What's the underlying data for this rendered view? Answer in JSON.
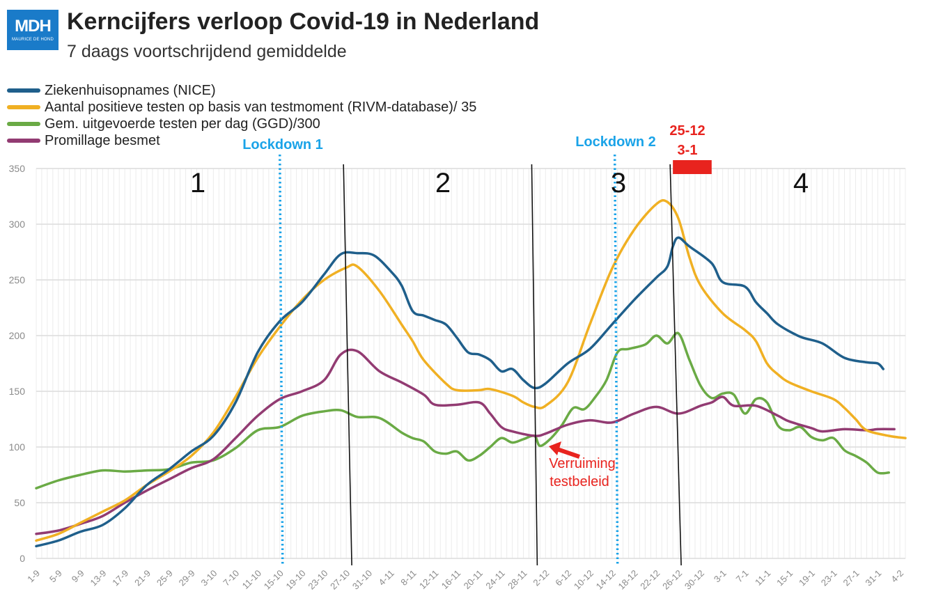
{
  "logo": {
    "text": "MDH",
    "subtext": "MAURICE DE HOND"
  },
  "title": "Kerncijfers verloop Covid-19 in Nederland",
  "subtitle": "7 daags voortschrijdend gemiddelde",
  "colors": {
    "ziekenhuis": "#1f5f8b",
    "positief": "#f0b023",
    "testen": "#6aaa45",
    "promillage": "#923b72",
    "lockdown": "#1aa3e8",
    "annotation": "#e8231e",
    "grid": "#e6e6e6"
  },
  "legend": [
    {
      "label": "Ziekenhuisopnames (NICE)",
      "color": "#1f5f8b"
    },
    {
      "label": "Aantal positieve testen op basis van testmoment (RIVM-database)/ 35",
      "color": "#f0b023"
    },
    {
      "label": "Gem. uitgevoerde testen per dag (GGD)/300",
      "color": "#6aaa45"
    },
    {
      "label": "Promillage besmet",
      "color": "#923b72"
    }
  ],
  "annotations": {
    "lockdown1": "Lockdown 1",
    "lockdown2": "Lockdown 2",
    "christmas_line1": "25-12",
    "christmas_line2": "3-1",
    "arrow_line1": "Verruiming",
    "arrow_line2": "testbeleid",
    "period_labels": [
      "1",
      "2",
      "3",
      "4"
    ]
  },
  "chart_data": {
    "type": "line",
    "x_tick_labels": [
      "1-9",
      "5-9",
      "9-9",
      "13-9",
      "17-9",
      "21-9",
      "25-9",
      "29-9",
      "3-10",
      "7-10",
      "11-10",
      "15-10",
      "19-10",
      "23-10",
      "27-10",
      "31-10",
      "4-11",
      "8-11",
      "12-11",
      "16-11",
      "20-11",
      "24-11",
      "28-11",
      "2-12",
      "6-12",
      "10-12",
      "14-12",
      "18-12",
      "22-12",
      "26-12",
      "30-12",
      "3-1",
      "7-1",
      "11-1",
      "15-1",
      "19-1",
      "23-1",
      "27-1",
      "31-1",
      "4-2"
    ],
    "x_range_days": [
      0,
      157
    ],
    "y_ticks": [
      0,
      50,
      100,
      150,
      200,
      250,
      300,
      350
    ],
    "ylim": [
      0,
      350
    ],
    "grid": true,
    "legend_position": "top-left",
    "markers": {
      "lockdown1_day": 44,
      "lockdown2_day": 104.5,
      "period_dividers": [
        [
          55.5,
          57
        ],
        [
          89.5,
          90.5
        ],
        [
          114.5,
          116.5
        ]
      ],
      "christmas_box_days": [
        115,
        122
      ]
    },
    "series": [
      {
        "name": "Ziekenhuisopnames (NICE)",
        "color": "#1f5f8b",
        "points": [
          [
            0,
            11
          ],
          [
            4,
            16
          ],
          [
            8,
            24
          ],
          [
            12,
            30
          ],
          [
            16,
            45
          ],
          [
            20,
            66
          ],
          [
            24,
            80
          ],
          [
            28,
            96
          ],
          [
            32,
            110
          ],
          [
            36,
            140
          ],
          [
            40,
            185
          ],
          [
            44,
            213
          ],
          [
            48,
            230
          ],
          [
            52,
            255
          ],
          [
            55,
            273
          ],
          [
            58,
            274
          ],
          [
            61,
            272
          ],
          [
            64,
            258
          ],
          [
            66,
            245
          ],
          [
            68,
            222
          ],
          [
            70,
            218
          ],
          [
            72,
            214
          ],
          [
            74,
            210
          ],
          [
            76,
            198
          ],
          [
            78,
            185
          ],
          [
            80,
            183
          ],
          [
            82,
            178
          ],
          [
            84,
            168
          ],
          [
            86,
            170
          ],
          [
            88,
            160
          ],
          [
            90,
            153
          ],
          [
            92,
            157
          ],
          [
            96,
            175
          ],
          [
            100,
            188
          ],
          [
            104,
            210
          ],
          [
            108,
            232
          ],
          [
            112,
            252
          ],
          [
            114,
            262
          ],
          [
            115,
            280
          ],
          [
            116,
            288
          ],
          [
            118,
            280
          ],
          [
            122,
            265
          ],
          [
            124,
            248
          ],
          [
            128,
            244
          ],
          [
            130,
            230
          ],
          [
            132,
            220
          ],
          [
            134,
            210
          ],
          [
            138,
            199
          ],
          [
            142,
            193
          ],
          [
            146,
            180
          ],
          [
            150,
            176
          ],
          [
            152,
            175
          ],
          [
            153,
            170
          ]
        ]
      },
      {
        "name": "Aantal positieve testen op basis van testmoment (RIVM-database)/ 35",
        "color": "#f0b023",
        "points": [
          [
            0,
            16
          ],
          [
            4,
            22
          ],
          [
            8,
            32
          ],
          [
            12,
            42
          ],
          [
            16,
            52
          ],
          [
            20,
            66
          ],
          [
            24,
            78
          ],
          [
            28,
            92
          ],
          [
            32,
            113
          ],
          [
            36,
            145
          ],
          [
            40,
            180
          ],
          [
            44,
            208
          ],
          [
            48,
            232
          ],
          [
            52,
            250
          ],
          [
            56,
            261
          ],
          [
            58,
            262
          ],
          [
            62,
            240
          ],
          [
            66,
            210
          ],
          [
            68,
            195
          ],
          [
            70,
            178
          ],
          [
            74,
            157
          ],
          [
            76,
            151
          ],
          [
            80,
            151
          ],
          [
            82,
            152
          ],
          [
            86,
            146
          ],
          [
            88,
            140
          ],
          [
            90,
            136
          ],
          [
            92,
            137
          ],
          [
            96,
            158
          ],
          [
            100,
            210
          ],
          [
            104,
            260
          ],
          [
            108,
            295
          ],
          [
            112,
            318
          ],
          [
            114,
            320
          ],
          [
            116,
            305
          ],
          [
            118,
            270
          ],
          [
            120,
            245
          ],
          [
            124,
            220
          ],
          [
            128,
            205
          ],
          [
            130,
            195
          ],
          [
            132,
            175
          ],
          [
            134,
            165
          ],
          [
            136,
            158
          ],
          [
            140,
            150
          ],
          [
            144,
            143
          ],
          [
            146,
            135
          ],
          [
            148,
            125
          ],
          [
            150,
            115
          ],
          [
            154,
            110
          ],
          [
            157,
            108
          ]
        ]
      },
      {
        "name": "Gem. uitgevoerde testen per dag (GGD)/300",
        "color": "#6aaa45",
        "points": [
          [
            0,
            63
          ],
          [
            4,
            70
          ],
          [
            8,
            75
          ],
          [
            12,
            79
          ],
          [
            16,
            78
          ],
          [
            20,
            79
          ],
          [
            24,
            80
          ],
          [
            28,
            86
          ],
          [
            32,
            88
          ],
          [
            36,
            99
          ],
          [
            40,
            115
          ],
          [
            44,
            118
          ],
          [
            48,
            128
          ],
          [
            52,
            132
          ],
          [
            55,
            133
          ],
          [
            58,
            127
          ],
          [
            62,
            126
          ],
          [
            66,
            113
          ],
          [
            68,
            108
          ],
          [
            70,
            105
          ],
          [
            72,
            96
          ],
          [
            74,
            94
          ],
          [
            76,
            96
          ],
          [
            78,
            88
          ],
          [
            80,
            92
          ],
          [
            82,
            100
          ],
          [
            84,
            108
          ],
          [
            86,
            104
          ],
          [
            88,
            107
          ],
          [
            90,
            110
          ],
          [
            91,
            101
          ],
          [
            93,
            108
          ],
          [
            95,
            120
          ],
          [
            97,
            135
          ],
          [
            99,
            134
          ],
          [
            101,
            145
          ],
          [
            103,
            160
          ],
          [
            105,
            185
          ],
          [
            107,
            188
          ],
          [
            110,
            192
          ],
          [
            112,
            200
          ],
          [
            114,
            193
          ],
          [
            116,
            202
          ],
          [
            118,
            178
          ],
          [
            120,
            155
          ],
          [
            122,
            144
          ],
          [
            124,
            148
          ],
          [
            126,
            147
          ],
          [
            128,
            130
          ],
          [
            130,
            143
          ],
          [
            132,
            140
          ],
          [
            134,
            119
          ],
          [
            136,
            115
          ],
          [
            138,
            118
          ],
          [
            140,
            109
          ],
          [
            142,
            106
          ],
          [
            144,
            108
          ],
          [
            146,
            97
          ],
          [
            148,
            92
          ],
          [
            150,
            86
          ],
          [
            152,
            77
          ],
          [
            154,
            77
          ]
        ]
      },
      {
        "name": "Promillage besmet",
        "color": "#923b72",
        "points": [
          [
            0,
            22
          ],
          [
            4,
            25
          ],
          [
            8,
            31
          ],
          [
            12,
            38
          ],
          [
            16,
            50
          ],
          [
            20,
            61
          ],
          [
            24,
            71
          ],
          [
            28,
            81
          ],
          [
            32,
            89
          ],
          [
            36,
            108
          ],
          [
            40,
            128
          ],
          [
            44,
            143
          ],
          [
            48,
            150
          ],
          [
            52,
            160
          ],
          [
            55,
            183
          ],
          [
            58,
            186
          ],
          [
            62,
            168
          ],
          [
            66,
            158
          ],
          [
            70,
            147
          ],
          [
            72,
            138
          ],
          [
            76,
            138
          ],
          [
            80,
            140
          ],
          [
            82,
            130
          ],
          [
            84,
            118
          ],
          [
            86,
            114
          ],
          [
            90,
            110
          ],
          [
            92,
            112
          ],
          [
            96,
            120
          ],
          [
            100,
            124
          ],
          [
            104,
            122
          ],
          [
            108,
            130
          ],
          [
            112,
            136
          ],
          [
            116,
            130
          ],
          [
            120,
            137
          ],
          [
            122,
            140
          ],
          [
            124,
            145
          ],
          [
            126,
            137
          ],
          [
            130,
            137
          ],
          [
            134,
            128
          ],
          [
            136,
            123
          ],
          [
            140,
            117
          ],
          [
            142,
            114
          ],
          [
            146,
            116
          ],
          [
            150,
            115
          ],
          [
            152,
            116
          ],
          [
            155,
            116
          ]
        ]
      }
    ]
  }
}
